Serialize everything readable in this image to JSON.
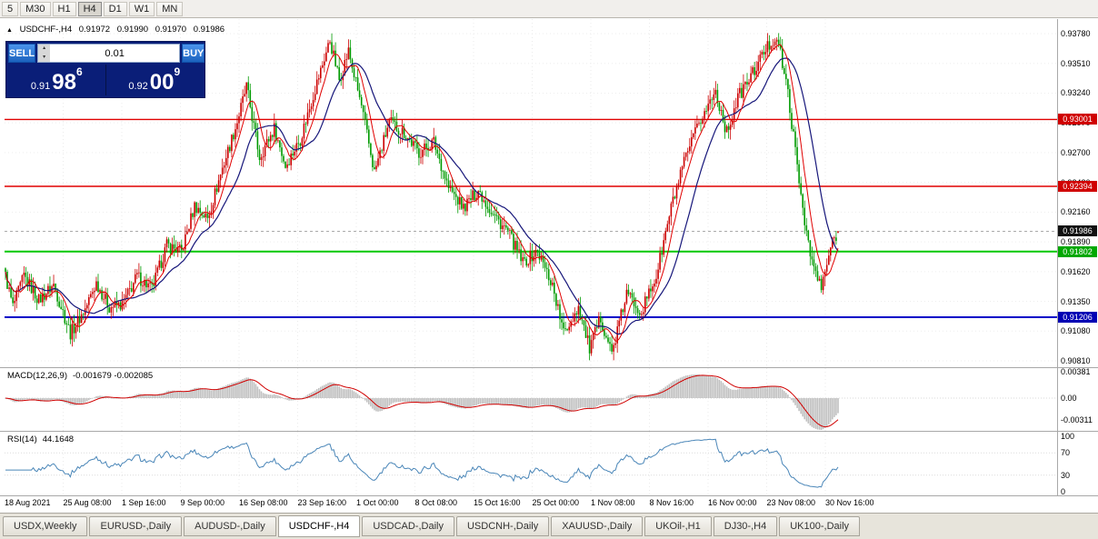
{
  "toolbar": {
    "timeframes": [
      {
        "label": "5",
        "active": false
      },
      {
        "label": "M30",
        "active": false
      },
      {
        "label": "H1",
        "active": false
      },
      {
        "label": "H4",
        "active": true
      },
      {
        "label": "D1",
        "active": false
      },
      {
        "label": "W1",
        "active": false
      },
      {
        "label": "MN",
        "active": false
      }
    ]
  },
  "chart_header": {
    "collapse_marker": "▲",
    "symbol": "USDCHF-,H4",
    "open": "0.91972",
    "high": "0.91990",
    "low": "0.91970",
    "close": "0.91986"
  },
  "trade_widget": {
    "sell_label": "SELL",
    "buy_label": "BUY",
    "volume": "0.01",
    "sell_price": {
      "prefix": "0.91",
      "big": "98",
      "sup": "6"
    },
    "buy_price": {
      "prefix": "0.92",
      "big": "00",
      "sup": "9"
    }
  },
  "price_axis": {
    "ticks": [
      "0.93780",
      "0.93510",
      "0.93240",
      "0.92970",
      "0.92700",
      "0.92430",
      "0.92160",
      "0.91890",
      "0.91620",
      "0.91350",
      "0.91080",
      "0.90810"
    ]
  },
  "levels": [
    {
      "label": "0.93001",
      "price": 0.93001,
      "color": "#E00000",
      "badge_bg": "#D00000",
      "width": 1.4,
      "current": false
    },
    {
      "label": "0.92394",
      "price": 0.92394,
      "color": "#E00000",
      "badge_bg": "#D00000",
      "width": 1.4,
      "current": false
    },
    {
      "label": "0.91986",
      "price": 0.91986,
      "color": "#AAAAAA",
      "badge_bg": "#101010",
      "width": 1,
      "current": true
    },
    {
      "label": "0.91802",
      "price": 0.91802,
      "color": "#00C800",
      "badge_bg": "#00A800",
      "width": 2,
      "current": false
    },
    {
      "label": "0.91206",
      "price": 0.91206,
      "color": "#0000C8",
      "badge_bg": "#0000B4",
      "width": 2,
      "current": false
    }
  ],
  "indicators": {
    "macd": {
      "title": "MACD(12,26,9)",
      "values": "-0.001679 -0.002085"
    },
    "rsi": {
      "title": "RSI(14)",
      "value": "44.1648"
    }
  },
  "tabs": [
    {
      "label": "USDX,Weekly",
      "active": false
    },
    {
      "label": "EURUSD-,Daily",
      "active": false
    },
    {
      "label": "AUDUSD-,Daily",
      "active": false
    },
    {
      "label": "USDCHF-,H4",
      "active": true
    },
    {
      "label": "USDCAD-,Daily",
      "active": false
    },
    {
      "label": "USDCNH-,Daily",
      "active": false
    },
    {
      "label": "XAUUSD-,Daily",
      "active": false
    },
    {
      "label": "UKOil-,H1",
      "active": false
    },
    {
      "label": "DJ30-,H4",
      "active": false
    },
    {
      "label": "UK100-,Daily",
      "active": false
    }
  ],
  "chart_data": {
    "type": "candlestick",
    "symbol": "USDCHF-",
    "timeframe": "H4",
    "title": "USDCHF-,H4",
    "ohlc_current": {
      "open": 0.91972,
      "high": 0.9199,
      "low": 0.9197,
      "close": 0.91986
    },
    "current_price": 0.91986,
    "y_range": [
      0.9081,
      0.9378
    ],
    "y_ticks": [
      0.9378,
      0.9351,
      0.9324,
      0.9297,
      0.927,
      0.9243,
      0.9216,
      0.9189,
      0.9162,
      0.9135,
      0.9108,
      0.9081
    ],
    "time_labels": [
      "18 Aug 2021",
      "25 Aug 08:00",
      "1 Sep 16:00",
      "9 Sep 00:00",
      "16 Sep 08:00",
      "23 Sep 16:00",
      "1 Oct 00:00",
      "8 Oct 08:00",
      "15 Oct 16:00",
      "25 Oct 00:00",
      "1 Nov 08:00",
      "8 Nov 16:00",
      "16 Nov 00:00",
      "23 Nov 08:00",
      "30 Nov 16:00"
    ],
    "num_candles": 450,
    "up_color": "#CC0000",
    "down_color": "#009A00",
    "ma_fast": {
      "period": 8,
      "color": "#E00000"
    },
    "ma_slow": {
      "period": 21,
      "color": "#16167A"
    },
    "horizontal_levels": [
      0.93001,
      0.92394,
      0.91802,
      0.91206
    ],
    "price_anchors": [
      [
        0,
        0.9165
      ],
      [
        5,
        0.913
      ],
      [
        11,
        0.9158
      ],
      [
        19,
        0.9136
      ],
      [
        27,
        0.915
      ],
      [
        36,
        0.9106
      ],
      [
        44,
        0.9128
      ],
      [
        50,
        0.9152
      ],
      [
        57,
        0.913
      ],
      [
        64,
        0.9132
      ],
      [
        72,
        0.9158
      ],
      [
        80,
        0.9146
      ],
      [
        88,
        0.9186
      ],
      [
        96,
        0.918
      ],
      [
        103,
        0.9222
      ],
      [
        110,
        0.921
      ],
      [
        118,
        0.9256
      ],
      [
        126,
        0.9298
      ],
      [
        131,
        0.933
      ],
      [
        138,
        0.9266
      ],
      [
        146,
        0.9292
      ],
      [
        152,
        0.9258
      ],
      [
        160,
        0.9282
      ],
      [
        168,
        0.9328
      ],
      [
        176,
        0.9372
      ],
      [
        181,
        0.9336
      ],
      [
        186,
        0.9362
      ],
      [
        193,
        0.9312
      ],
      [
        200,
        0.9252
      ],
      [
        208,
        0.9298
      ],
      [
        216,
        0.9288
      ],
      [
        224,
        0.927
      ],
      [
        232,
        0.928
      ],
      [
        240,
        0.9238
      ],
      [
        248,
        0.922
      ],
      [
        256,
        0.9236
      ],
      [
        264,
        0.9214
      ],
      [
        272,
        0.9198
      ],
      [
        280,
        0.917
      ],
      [
        288,
        0.918
      ],
      [
        296,
        0.915
      ],
      [
        302,
        0.9106
      ],
      [
        310,
        0.913
      ],
      [
        316,
        0.9092
      ],
      [
        322,
        0.912
      ],
      [
        328,
        0.9088
      ],
      [
        336,
        0.9142
      ],
      [
        344,
        0.9126
      ],
      [
        352,
        0.9158
      ],
      [
        360,
        0.922
      ],
      [
        368,
        0.9266
      ],
      [
        376,
        0.93
      ],
      [
        384,
        0.9326
      ],
      [
        390,
        0.9288
      ],
      [
        396,
        0.932
      ],
      [
        404,
        0.9342
      ],
      [
        411,
        0.9364
      ],
      [
        417,
        0.9376
      ],
      [
        423,
        0.9324
      ],
      [
        429,
        0.9244
      ],
      [
        435,
        0.9176
      ],
      [
        441,
        0.9146
      ],
      [
        446,
        0.9184
      ],
      [
        450,
        0.9199
      ]
    ],
    "indicators": {
      "macd": {
        "params": [
          12,
          26,
          9
        ],
        "current_macd": -0.001679,
        "current_signal": -0.002085,
        "axis": [
          "0.00381",
          "0.00",
          "-0.00311"
        ],
        "histogram_color": "#C0C0C0",
        "signal_color": "#D00000"
      },
      "rsi": {
        "period": 14,
        "current": 44.1648,
        "axis_labels": [
          "100",
          "70",
          "30",
          "0"
        ],
        "guide_levels": [
          70,
          30
        ],
        "color": "#4A86B8"
      }
    }
  }
}
